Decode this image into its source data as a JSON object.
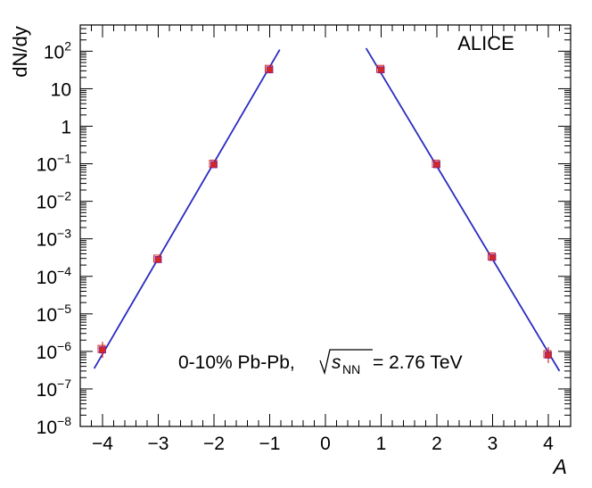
{
  "chart_data": {
    "type": "scatter",
    "title": "",
    "xlabel": "A",
    "ylabel": "dN/dy",
    "xlim": [
      -4.4,
      4.4
    ],
    "ylim": [
      1e-08,
      500
    ],
    "yscale": "log",
    "grid": false,
    "xticks": [
      "−4",
      "−3",
      "−2",
      "−1",
      "0",
      "1",
      "2",
      "3",
      "4"
    ],
    "xtick_values": [
      -4,
      -3,
      -2,
      -1,
      0,
      1,
      2,
      3,
      4
    ],
    "yticks": [
      {
        "value": 1e-08,
        "base": "10",
        "exp": "−8"
      },
      {
        "value": 1e-07,
        "base": "10",
        "exp": "−7"
      },
      {
        "value": 1e-06,
        "base": "10",
        "exp": "−6"
      },
      {
        "value": 1e-05,
        "base": "10",
        "exp": "−5"
      },
      {
        "value": 0.0001,
        "base": "10",
        "exp": "−4"
      },
      {
        "value": 0.001,
        "base": "10",
        "exp": "−3"
      },
      {
        "value": 0.01,
        "base": "10",
        "exp": "−2"
      },
      {
        "value": 0.1,
        "base": "10",
        "exp": "−1"
      },
      {
        "value": 1,
        "base": "1",
        "exp": ""
      },
      {
        "value": 10,
        "base": "10",
        "exp": ""
      },
      {
        "value": 100,
        "base": "10",
        "exp": "2"
      }
    ],
    "annotations": {
      "experiment": "ALICE",
      "system_prefix": "0-10% Pb-Pb, ",
      "system_s": "s",
      "system_sub": "NN",
      "system_suffix": " = 2.76 TeV"
    },
    "points": [
      {
        "x": -4,
        "y": 1.1e-06
      },
      {
        "x": -3,
        "y": 0.00028
      },
      {
        "x": -2,
        "y": 0.095
      },
      {
        "x": -1,
        "y": 32
      },
      {
        "x": 1,
        "y": 32
      },
      {
        "x": 2,
        "y": 0.095
      },
      {
        "x": 3,
        "y": 0.00032
      },
      {
        "x": 4,
        "y": 8e-07
      }
    ],
    "fits": [
      {
        "x": [
          -4.15,
          -0.82
        ],
        "y": [
          3.5e-07,
          110
        ]
      },
      {
        "x": [
          0.73,
          4.2
        ],
        "y": [
          120,
          3e-07
        ]
      }
    ],
    "colors": {
      "fit": "#2b2bbf",
      "points": "#d42727",
      "axes": "#000000"
    }
  }
}
